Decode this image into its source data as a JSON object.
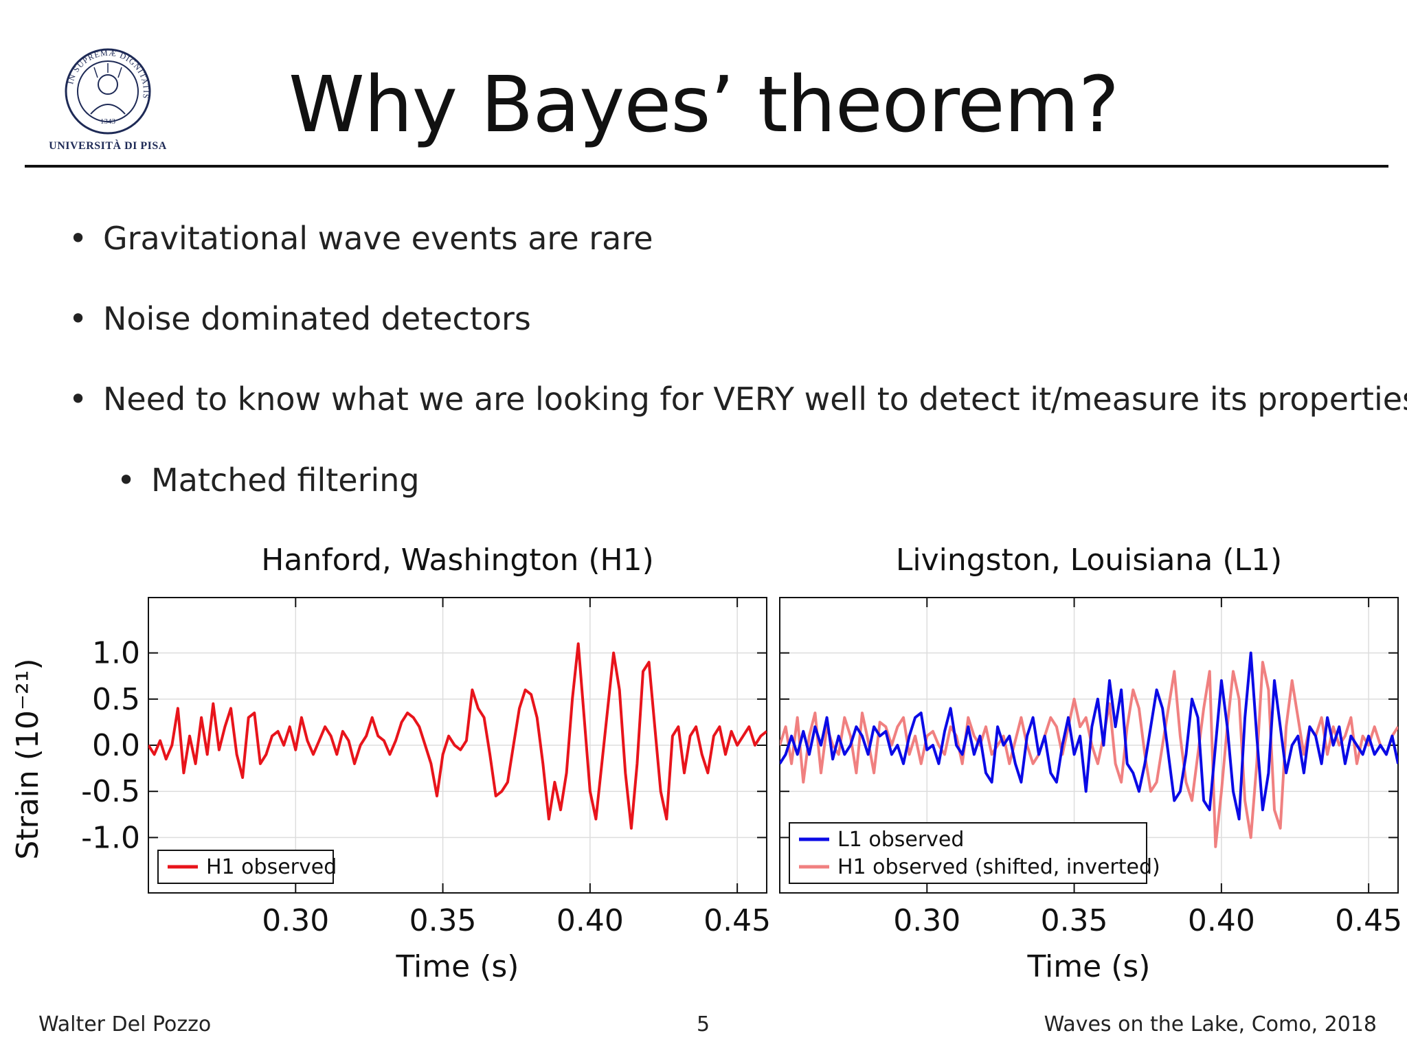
{
  "logo": {
    "caption": "UNIVERSITÀ DI PISA",
    "ring_text": "IN SUPREMÆ DIGNITATIS",
    "year": "1343"
  },
  "slide": {
    "title": "Why Bayes’ theorem?",
    "bullets": [
      "Gravitational wave events are rare",
      "Noise dominated detectors",
      "Need to know what we are looking for VERY well to detect it/measure its properties"
    ],
    "sub_bullets": [
      "Matched filtering"
    ]
  },
  "footer": {
    "author": "Walter Del Pozzo",
    "page": "5",
    "event": "Waves on the Lake, Como, 2018"
  },
  "colors": {
    "h1": "#e8141b",
    "l1": "#0a0ae6",
    "h1_shifted": "#f08080",
    "grid": "#dddddd"
  },
  "chart_data": [
    {
      "type": "line",
      "title": "Hanford, Washington (H1)",
      "xlabel": "Time (s)",
      "ylabel": "Strain (10⁻²¹)",
      "xlim": [
        0.25,
        0.46
      ],
      "ylim": [
        -1.6,
        1.6
      ],
      "xticks": [
        "0.30",
        "0.35",
        "0.40",
        "0.45"
      ],
      "yticks": [
        "1.0",
        "0.5",
        "0.0",
        "-0.5",
        "-1.0"
      ],
      "grid": true,
      "legend": "bottom-left",
      "series": [
        {
          "name": "H1 observed",
          "color": "#e8141b",
          "x": [
            0.25,
            0.252,
            0.254,
            0.256,
            0.258,
            0.26,
            0.262,
            0.264,
            0.266,
            0.268,
            0.27,
            0.272,
            0.274,
            0.276,
            0.278,
            0.28,
            0.282,
            0.284,
            0.286,
            0.288,
            0.29,
            0.292,
            0.294,
            0.296,
            0.298,
            0.3,
            0.302,
            0.304,
            0.306,
            0.308,
            0.31,
            0.312,
            0.314,
            0.316,
            0.318,
            0.32,
            0.322,
            0.324,
            0.326,
            0.328,
            0.33,
            0.332,
            0.334,
            0.336,
            0.338,
            0.34,
            0.342,
            0.344,
            0.346,
            0.348,
            0.35,
            0.352,
            0.354,
            0.356,
            0.358,
            0.36,
            0.362,
            0.364,
            0.366,
            0.368,
            0.37,
            0.372,
            0.374,
            0.376,
            0.378,
            0.38,
            0.382,
            0.384,
            0.386,
            0.388,
            0.39,
            0.392,
            0.394,
            0.396,
            0.398,
            0.4,
            0.402,
            0.404,
            0.406,
            0.408,
            0.41,
            0.412,
            0.414,
            0.416,
            0.418,
            0.42,
            0.422,
            0.424,
            0.426,
            0.428,
            0.43,
            0.432,
            0.434,
            0.436,
            0.438,
            0.44,
            0.442,
            0.444,
            0.446,
            0.448,
            0.45,
            0.452,
            0.454,
            0.456,
            0.458,
            0.46
          ],
          "y": [
            0.0,
            -0.1,
            0.05,
            -0.15,
            0.0,
            0.4,
            -0.3,
            0.1,
            -0.2,
            0.3,
            -0.1,
            0.45,
            -0.05,
            0.2,
            0.4,
            -0.1,
            -0.35,
            0.3,
            0.35,
            -0.2,
            -0.1,
            0.1,
            0.15,
            0.0,
            0.2,
            -0.05,
            0.3,
            0.05,
            -0.1,
            0.05,
            0.2,
            0.1,
            -0.1,
            0.15,
            0.05,
            -0.2,
            0.0,
            0.1,
            0.3,
            0.1,
            0.05,
            -0.1,
            0.05,
            0.25,
            0.35,
            0.3,
            0.2,
            0.0,
            -0.2,
            -0.55,
            -0.1,
            0.1,
            0.0,
            -0.05,
            0.05,
            0.6,
            0.4,
            0.3,
            -0.1,
            -0.55,
            -0.5,
            -0.4,
            0.0,
            0.4,
            0.6,
            0.55,
            0.3,
            -0.2,
            -0.8,
            -0.4,
            -0.7,
            -0.3,
            0.5,
            1.1,
            0.3,
            -0.5,
            -0.8,
            -0.2,
            0.4,
            1.0,
            0.6,
            -0.3,
            -0.9,
            -0.2,
            0.8,
            0.9,
            0.2,
            -0.5,
            -0.8,
            0.1,
            0.2,
            -0.3,
            0.1,
            0.2,
            -0.1,
            -0.3,
            0.1,
            0.2,
            -0.1,
            0.15,
            0.0,
            0.1,
            0.2,
            0.0,
            0.1,
            0.15
          ],
          "x_start": 0.25
        }
      ]
    },
    {
      "type": "line",
      "title": "Livingston, Louisiana (L1)",
      "xlabel": "Time (s)",
      "xlim": [
        0.25,
        0.46
      ],
      "ylim": [
        -1.6,
        1.6
      ],
      "xticks": [
        "0.30",
        "0.35",
        "0.40",
        "0.45"
      ],
      "grid": true,
      "legend": "bottom-left",
      "series": [
        {
          "name": "L1 observed",
          "color": "#0a0ae6",
          "x": [
            0.25,
            0.252,
            0.254,
            0.256,
            0.258,
            0.26,
            0.262,
            0.264,
            0.266,
            0.268,
            0.27,
            0.272,
            0.274,
            0.276,
            0.278,
            0.28,
            0.282,
            0.284,
            0.286,
            0.288,
            0.29,
            0.292,
            0.294,
            0.296,
            0.298,
            0.3,
            0.302,
            0.304,
            0.306,
            0.308,
            0.31,
            0.312,
            0.314,
            0.316,
            0.318,
            0.32,
            0.322,
            0.324,
            0.326,
            0.328,
            0.33,
            0.332,
            0.334,
            0.336,
            0.338,
            0.34,
            0.342,
            0.344,
            0.346,
            0.348,
            0.35,
            0.352,
            0.354,
            0.356,
            0.358,
            0.36,
            0.362,
            0.364,
            0.366,
            0.368,
            0.37,
            0.372,
            0.374,
            0.376,
            0.378,
            0.38,
            0.382,
            0.384,
            0.386,
            0.388,
            0.39,
            0.392,
            0.394,
            0.396,
            0.398,
            0.4,
            0.402,
            0.404,
            0.406,
            0.408,
            0.41,
            0.412,
            0.414,
            0.416,
            0.418,
            0.42,
            0.422,
            0.424,
            0.426,
            0.428,
            0.43,
            0.432,
            0.434,
            0.436,
            0.438,
            0.44,
            0.442,
            0.444,
            0.446,
            0.448,
            0.45,
            0.452,
            0.454,
            0.456,
            0.458,
            0.46
          ],
          "y": [
            -0.2,
            -0.1,
            0.1,
            -0.1,
            0.15,
            -0.1,
            0.2,
            0.0,
            0.3,
            -0.15,
            0.1,
            -0.1,
            0.0,
            0.2,
            0.1,
            -0.1,
            0.2,
            0.1,
            0.15,
            -0.1,
            0.0,
            -0.2,
            0.1,
            0.3,
            0.35,
            -0.05,
            0.0,
            -0.2,
            0.15,
            0.4,
            0.0,
            -0.1,
            0.2,
            -0.1,
            0.1,
            -0.3,
            -0.4,
            0.2,
            0.0,
            0.1,
            -0.2,
            -0.4,
            0.1,
            0.3,
            -0.1,
            0.1,
            -0.3,
            -0.4,
            0.0,
            0.3,
            -0.1,
            0.1,
            -0.5,
            0.2,
            0.5,
            0.0,
            0.7,
            0.2,
            0.6,
            -0.2,
            -0.3,
            -0.5,
            -0.2,
            0.2,
            0.6,
            0.4,
            -0.1,
            -0.6,
            -0.5,
            -0.1,
            0.5,
            0.3,
            -0.6,
            -0.7,
            0.0,
            0.7,
            0.2,
            -0.5,
            -0.8,
            0.3,
            1.0,
            0.1,
            -0.7,
            -0.3,
            0.7,
            0.2,
            -0.3,
            0.0,
            0.1,
            -0.3,
            0.2,
            0.1,
            -0.2,
            0.3,
            0.0,
            0.2,
            -0.2,
            0.1,
            0.0,
            -0.1,
            0.1,
            -0.1,
            0.0,
            -0.1,
            0.1,
            -0.2
          ]
        },
        {
          "name": "H1 observed (shifted, inverted)",
          "color": "#f08080",
          "x": [
            0.25,
            0.252,
            0.254,
            0.256,
            0.258,
            0.26,
            0.262,
            0.264,
            0.266,
            0.268,
            0.27,
            0.272,
            0.274,
            0.276,
            0.278,
            0.28,
            0.282,
            0.284,
            0.286,
            0.288,
            0.29,
            0.292,
            0.294,
            0.296,
            0.298,
            0.3,
            0.302,
            0.304,
            0.306,
            0.308,
            0.31,
            0.312,
            0.314,
            0.316,
            0.318,
            0.32,
            0.322,
            0.324,
            0.326,
            0.328,
            0.33,
            0.332,
            0.334,
            0.336,
            0.338,
            0.34,
            0.342,
            0.344,
            0.346,
            0.348,
            0.35,
            0.352,
            0.354,
            0.356,
            0.358,
            0.36,
            0.362,
            0.364,
            0.366,
            0.368,
            0.37,
            0.372,
            0.374,
            0.376,
            0.378,
            0.38,
            0.382,
            0.384,
            0.386,
            0.388,
            0.39,
            0.392,
            0.394,
            0.396,
            0.398,
            0.4,
            0.402,
            0.404,
            0.406,
            0.408,
            0.41,
            0.412,
            0.414,
            0.416,
            0.418,
            0.42,
            0.422,
            0.424,
            0.426,
            0.428,
            0.43,
            0.432,
            0.434,
            0.436,
            0.438,
            0.44,
            0.442,
            0.444,
            0.446,
            0.448,
            0.45,
            0.452,
            0.454,
            0.456,
            0.458,
            0.46
          ],
          "y": [
            0.0,
            0.2,
            -0.2,
            0.3,
            -0.4,
            0.1,
            0.35,
            -0.3,
            0.2,
            0.0,
            -0.1,
            0.3,
            0.1,
            -0.3,
            0.35,
            0.05,
            -0.3,
            0.25,
            0.2,
            0.0,
            0.2,
            0.3,
            -0.1,
            0.1,
            -0.2,
            0.1,
            0.15,
            0.0,
            -0.1,
            0.2,
            0.1,
            -0.2,
            0.3,
            0.1,
            0.0,
            0.2,
            -0.1,
            0.0,
            0.1,
            -0.2,
            0.05,
            0.3,
            0.0,
            -0.2,
            -0.1,
            0.1,
            0.3,
            0.2,
            -0.1,
            0.2,
            0.5,
            0.2,
            0.3,
            0.0,
            -0.2,
            0.1,
            0.45,
            -0.2,
            -0.4,
            0.2,
            0.6,
            0.4,
            -0.1,
            -0.5,
            -0.4,
            0.0,
            0.4,
            0.8,
            0.1,
            -0.4,
            -0.6,
            -0.1,
            0.4,
            0.8,
            -1.1,
            -0.5,
            0.2,
            0.8,
            0.5,
            -0.6,
            -1.0,
            -0.2,
            0.9,
            0.6,
            -0.7,
            -0.9,
            0.2,
            0.7,
            0.3,
            -0.1,
            0.2,
            0.1,
            0.3,
            -0.1,
            0.2,
            0.0,
            0.1,
            0.3,
            -0.2,
            0.1,
            0.0,
            0.2,
            0.0,
            -0.1,
            0.1,
            0.2
          ]
        }
      ]
    }
  ]
}
